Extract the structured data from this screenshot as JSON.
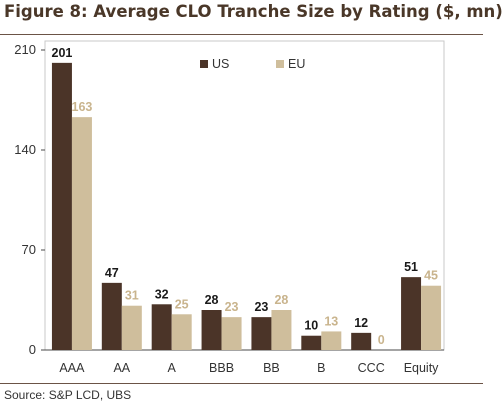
{
  "title": "Figure 8: Average CLO Tranche Size by Rating ($, mn)",
  "source": "Source:  S&P LCD, UBS",
  "colors": {
    "us": "#4b3428",
    "eu": "#cfbe9c",
    "axis": "#4a4a4a",
    "frame": "#c9c9c9",
    "title": "#4a3728"
  },
  "chart_data": {
    "type": "bar",
    "categories": [
      "AAA",
      "AA",
      "A",
      "BBB",
      "BB",
      "B",
      "CCC",
      "Equity"
    ],
    "series": [
      {
        "name": "US",
        "values": [
          201,
          47,
          32,
          28,
          23,
          10,
          12,
          51
        ],
        "labels": [
          "201",
          "47",
          "32",
          "28",
          "23",
          "10",
          "12",
          "51"
        ]
      },
      {
        "name": "EU",
        "values": [
          163,
          31,
          25,
          23,
          28,
          13,
          0,
          45
        ],
        "labels": [
          "163",
          "31",
          "25",
          "23",
          "28",
          "13",
          "0",
          "45"
        ]
      }
    ],
    "y_ticks": [
      "0",
      "70",
      "140",
      "210"
    ],
    "ylim": [
      0,
      210
    ],
    "legend_position": "top-center",
    "grid": false
  }
}
